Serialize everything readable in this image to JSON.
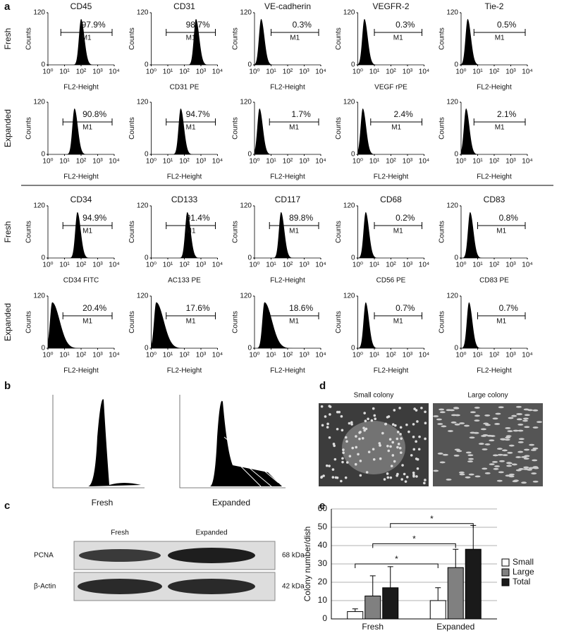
{
  "panel_labels": [
    "a",
    "b",
    "c",
    "d",
    "e"
  ],
  "flow": {
    "ylabel": "Counts",
    "ylim": [
      0,
      120
    ],
    "yticks": [
      0,
      120
    ],
    "log_x": true,
    "xlim": [
      1,
      10000
    ],
    "xticks": [
      {
        "value": 1,
        "label": "10⁰"
      },
      {
        "value": 10,
        "label": "10¹"
      },
      {
        "value": 100,
        "label": "10²"
      },
      {
        "value": 1000,
        "label": "10³"
      },
      {
        "value": 10000,
        "label": "10⁴"
      }
    ],
    "gate_name": "M1",
    "rows": [
      {
        "label": "Fresh",
        "plots": [
          {
            "title": "CD45",
            "xlabel": "FL2-Height",
            "gate": {
              "value": 97.9,
              "label": "97.9%"
            },
            "gate_start": 6,
            "peak": 100
          },
          {
            "title": "CD31",
            "xlabel": "CD31 PE",
            "gate": {
              "value": 98.7,
              "label": "98.7%"
            },
            "gate_start": 8,
            "peak": 500
          },
          {
            "title": "VE-cadherin",
            "xlabel": "FL2-Height",
            "gate": {
              "value": 0.3,
              "label": "0.3%"
            },
            "gate_start": 10,
            "peak": 2.5
          },
          {
            "title": "VEGFR-2",
            "xlabel": "VEGF rPE",
            "gate": {
              "value": 0.3,
              "label": "0.3%"
            },
            "gate_start": 10,
            "peak": 2.5
          },
          {
            "title": "Tie-2",
            "xlabel": "FL2-Height",
            "gate": {
              "value": 0.5,
              "label": "0.5%"
            },
            "gate_start": 6,
            "peak": 2.5
          }
        ]
      },
      {
        "label": "Expanded",
        "plots": [
          {
            "xlabel": "FL2-Height",
            "gate": {
              "value": 90.8,
              "label": "90.8%"
            },
            "gate_start": 8,
            "peak": 40
          },
          {
            "xlabel": "FL2-Height",
            "gate": {
              "value": 94.7,
              "label": "94.7%"
            },
            "gate_start": 8,
            "peak": 60
          },
          {
            "xlabel": "FL2-Height",
            "gate": {
              "value": 1.7,
              "label": "1.7%"
            },
            "gate_start": 8,
            "peak": 2
          },
          {
            "xlabel": "FL2-Height",
            "gate": {
              "value": 2.4,
              "label": "2.4%"
            },
            "gate_start": 6,
            "peak": 2
          },
          {
            "xlabel": "FL2-Height",
            "gate": {
              "value": 2.1,
              "label": "2.1%"
            },
            "gate_start": 6,
            "peak": 2
          }
        ]
      },
      {
        "label": "Fresh",
        "plots": [
          {
            "title": "CD34",
            "xlabel": "CD34 FITC",
            "gate": {
              "value": 94.9,
              "label": "94.9%"
            },
            "gate_start": 8,
            "peak": 60
          },
          {
            "title": "CD133",
            "xlabel": "AC133 PE",
            "gate": {
              "value": 91.4,
              "label": "91.4%"
            },
            "gate_start": 8,
            "peak": 150
          },
          {
            "title": "CD117",
            "xlabel": "FL2-Height",
            "gate": {
              "value": 89.8,
              "label": "89.8%"
            },
            "gate_start": 8,
            "peak": 40
          },
          {
            "title": "CD68",
            "xlabel": "CD56 PE",
            "gate": {
              "value": 0.2,
              "label": "0.2%"
            },
            "gate_start": 10,
            "peak": 3
          },
          {
            "title": "CD83",
            "xlabel": "CD83 PE",
            "gate": {
              "value": 0.8,
              "label": "0.8%"
            },
            "gate_start": 10,
            "peak": 3.5
          }
        ]
      },
      {
        "label": "Expanded",
        "plots": [
          {
            "xlabel": "FL2-Height",
            "gate": {
              "value": 20.4,
              "label": "20.4%"
            },
            "gate_start": 8,
            "peak": 1.8
          },
          {
            "xlabel": "FL2-Height",
            "gate": {
              "value": 17.6,
              "label": "17.6%"
            },
            "gate_start": 8,
            "peak": 2
          },
          {
            "xlabel": "FL2-Height",
            "gate": {
              "value": 18.6,
              "label": "18.6%"
            },
            "gate_start": 8,
            "peak": 4
          },
          {
            "xlabel": "FL2-Height",
            "gate": {
              "value": 0.7,
              "label": "0.7%"
            },
            "gate_start": 10,
            "peak": 3
          },
          {
            "xlabel": "FL2-Height",
            "gate": {
              "value": 0.7,
              "label": "0.7%"
            },
            "gate_start": 10,
            "peak": 3
          }
        ]
      }
    ]
  },
  "cell_cycle": {
    "labels": [
      "Fresh",
      "Expanded"
    ]
  },
  "blot": {
    "columns": [
      "Fresh",
      "Expanded"
    ],
    "rows": [
      {
        "protein": "PCNA",
        "size": "68 kDa"
      },
      {
        "protein": "β-Actin",
        "size": "42 kDa"
      }
    ]
  },
  "colonies": {
    "labels": [
      "Small colony",
      "Large colony"
    ]
  },
  "chart_data": {
    "type": "bar",
    "ylabel": "Colony number/dish",
    "categories": [
      "Fresh",
      "Expanded"
    ],
    "series": [
      {
        "name": "Small",
        "color": "#ffffff",
        "values": [
          4,
          10
        ],
        "errors": [
          1.5,
          7
        ]
      },
      {
        "name": "Large",
        "color": "#808080",
        "values": [
          12.5,
          28
        ],
        "errors": [
          11,
          10
        ]
      },
      {
        "name": "Total",
        "color": "#1a1a1a",
        "values": [
          17,
          38
        ],
        "errors": [
          11.5,
          13
        ]
      }
    ],
    "ylim": [
      0,
      60
    ],
    "yticks": [
      0,
      10,
      20,
      30,
      40,
      50,
      60
    ],
    "grid": true,
    "legend": "right",
    "brackets": [
      {
        "label": "*",
        "series": 0,
        "y": 30
      },
      {
        "label": "*",
        "series": 1,
        "y": 41
      },
      {
        "label": "*",
        "series": 2,
        "y": 52
      }
    ]
  }
}
